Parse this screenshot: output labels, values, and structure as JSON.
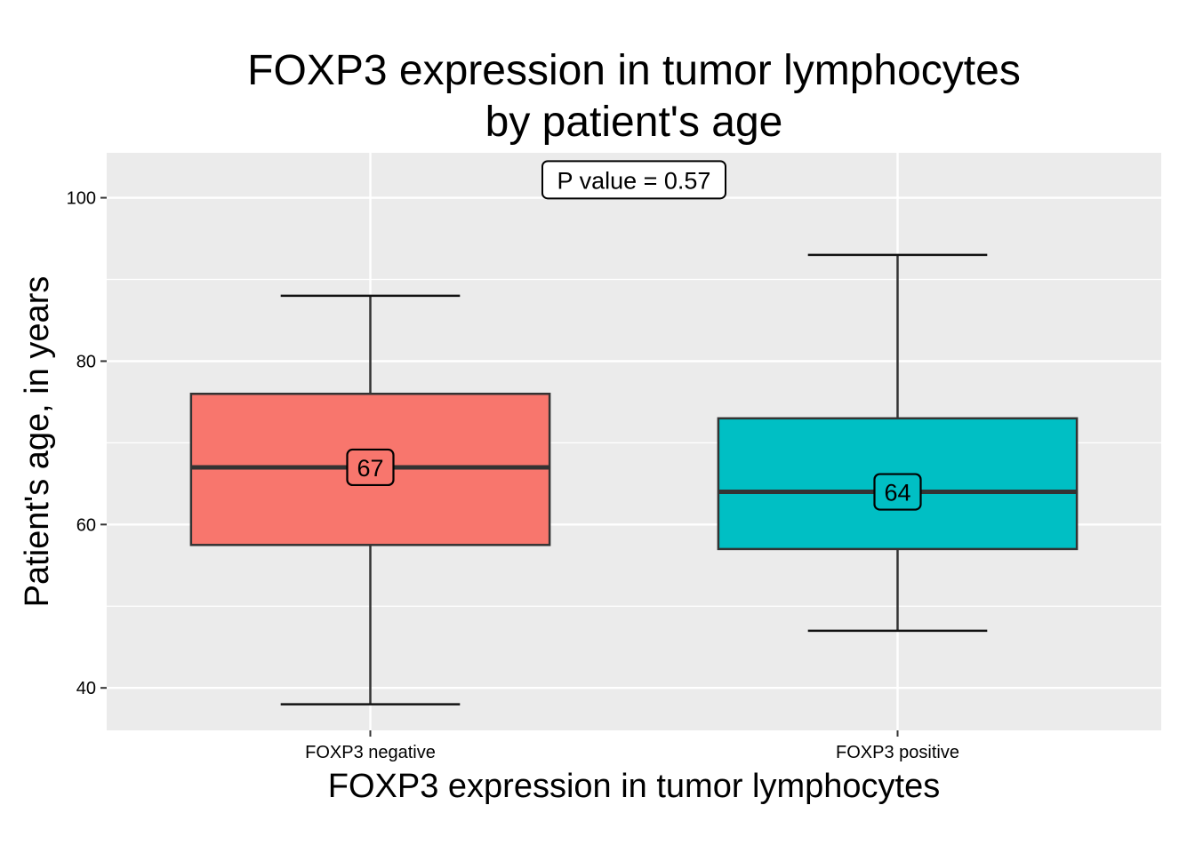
{
  "chart_data": {
    "type": "boxplot",
    "title_lines": [
      "FOXP3 expression in tumor lymphocytes",
      "by patient's age"
    ],
    "xlabel": "FOXP3 expression in tumor lymphocytes",
    "ylabel": "Patient's age, in years",
    "ylim": [
      34.8,
      105.5
    ],
    "yticks": [
      40,
      60,
      80,
      100
    ],
    "y_minor_ticks": [
      50,
      70,
      90
    ],
    "categories": [
      "FOXP3 negative",
      "FOXP3 positive"
    ],
    "boxes": [
      {
        "category": "FOXP3 negative",
        "min": 38,
        "q1": 57.5,
        "median": 67,
        "q3": 76,
        "max": 88,
        "median_label": "67",
        "color": "#F8766D"
      },
      {
        "category": "FOXP3 positive",
        "min": 47,
        "q1": 57,
        "median": 64,
        "q3": 73,
        "max": 93,
        "median_label": "64",
        "color": "#00BFC4"
      }
    ],
    "annotation": "P value = 0.57",
    "annotation_y": 102.2,
    "grid": true,
    "panel_color": "#EBEBEB"
  }
}
